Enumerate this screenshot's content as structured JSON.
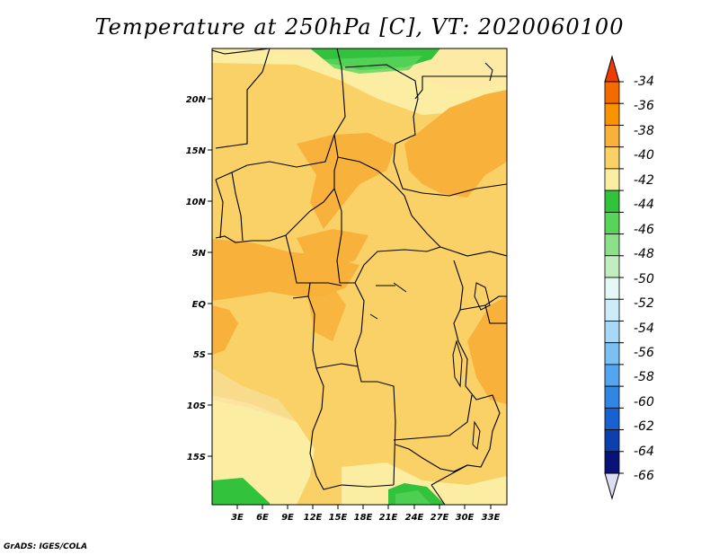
{
  "title": "Temperature at 250hPa [C], VT: 2020060100",
  "footer": "GrADS: IGES/COLA",
  "map": {
    "lat_labels": [
      "20N",
      "15N",
      "10N",
      "5N",
      "EQ",
      "5S",
      "10S",
      "15S"
    ],
    "lon_labels": [
      "3E",
      "6E",
      "9E",
      "12E",
      "15E",
      "18E",
      "21E",
      "24E",
      "27E",
      "30E",
      "33E"
    ]
  },
  "colorbar": {
    "labels": [
      "-34",
      "-36",
      "-38",
      "-40",
      "-42",
      "-44",
      "-46",
      "-48",
      "-50",
      "-52",
      "-54",
      "-56",
      "-58",
      "-60",
      "-62",
      "-64",
      "-66"
    ],
    "colors": [
      "#f03c00",
      "#f56a00",
      "#f79400",
      "#f8b13a",
      "#f9d166",
      "#fbeea2",
      "#33c23c",
      "#59d45b",
      "#8de08a",
      "#c0eec0",
      "#e4f8f5",
      "#cdebf8",
      "#a9d8f6",
      "#7cbff3",
      "#55a4ef",
      "#2f86e5",
      "#1862cf",
      "#0e3faf",
      "#08137a",
      "#ddddf4"
    ]
  }
}
